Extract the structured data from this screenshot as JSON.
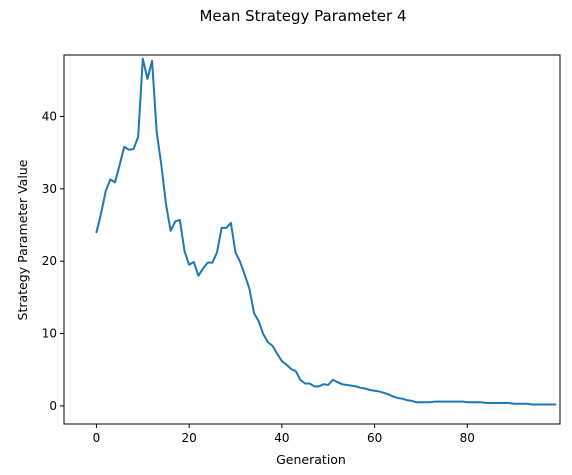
{
  "chart_data": {
    "type": "line",
    "title": "Mean Strategy Parameter 4",
    "xlabel": "Generation",
    "ylabel": "Strategy Parameter Value",
    "xlim": [
      -7,
      100
    ],
    "ylim": [
      -2.5,
      48.5
    ],
    "xticks": [
      0,
      20,
      40,
      60,
      80
    ],
    "yticks": [
      0,
      10,
      20,
      30,
      40
    ],
    "grid": false,
    "line_color": "#1f77b4",
    "series": [
      {
        "x": [
          0,
          1,
          2,
          3,
          4,
          5,
          6,
          7,
          8,
          9,
          10,
          11,
          12,
          13,
          14,
          15,
          16,
          17,
          18,
          19,
          20,
          21,
          22,
          23,
          24,
          25,
          26,
          27,
          28,
          29,
          30,
          31,
          32,
          33,
          34,
          35,
          36,
          37,
          38,
          39,
          40,
          41,
          42,
          43,
          44,
          45,
          46,
          47,
          48,
          49,
          50,
          51,
          52,
          53,
          54,
          55,
          56,
          57,
          58,
          59,
          60,
          61,
          62,
          63,
          64,
          65,
          66,
          67,
          68,
          69,
          70,
          71,
          72,
          73,
          74,
          75,
          76,
          77,
          78,
          79,
          80,
          81,
          82,
          83,
          84,
          85,
          86,
          87,
          88,
          89,
          90,
          91,
          92,
          93,
          94,
          95,
          96,
          97,
          98,
          99
        ],
        "y": [
          24.0,
          26.6,
          29.7,
          31.3,
          30.9,
          33.3,
          35.8,
          35.4,
          35.5,
          37.2,
          48.0,
          45.2,
          47.7,
          37.8,
          33.3,
          27.9,
          24.2,
          25.5,
          25.7,
          21.4,
          19.5,
          19.9,
          18.0,
          19.0,
          19.8,
          19.8,
          21.2,
          24.6,
          24.6,
          25.3,
          21.2,
          19.9,
          18.1,
          16.2,
          12.8,
          11.7,
          9.9,
          8.8,
          8.3,
          7.2,
          6.2,
          5.7,
          5.1,
          4.8,
          3.6,
          3.1,
          3.1,
          2.7,
          2.7,
          3.0,
          2.9,
          3.6,
          3.3,
          3.0,
          2.9,
          2.8,
          2.7,
          2.5,
          2.4,
          2.2,
          2.1,
          2.0,
          1.8,
          1.6,
          1.3,
          1.1,
          1.0,
          0.8,
          0.7,
          0.5,
          0.5,
          0.5,
          0.5,
          0.6,
          0.6,
          0.6,
          0.6,
          0.6,
          0.6,
          0.6,
          0.5,
          0.5,
          0.5,
          0.5,
          0.4,
          0.4,
          0.4,
          0.4,
          0.4,
          0.4,
          0.3,
          0.3,
          0.3,
          0.3,
          0.2,
          0.2,
          0.2,
          0.2,
          0.2,
          0.2
        ]
      }
    ]
  }
}
